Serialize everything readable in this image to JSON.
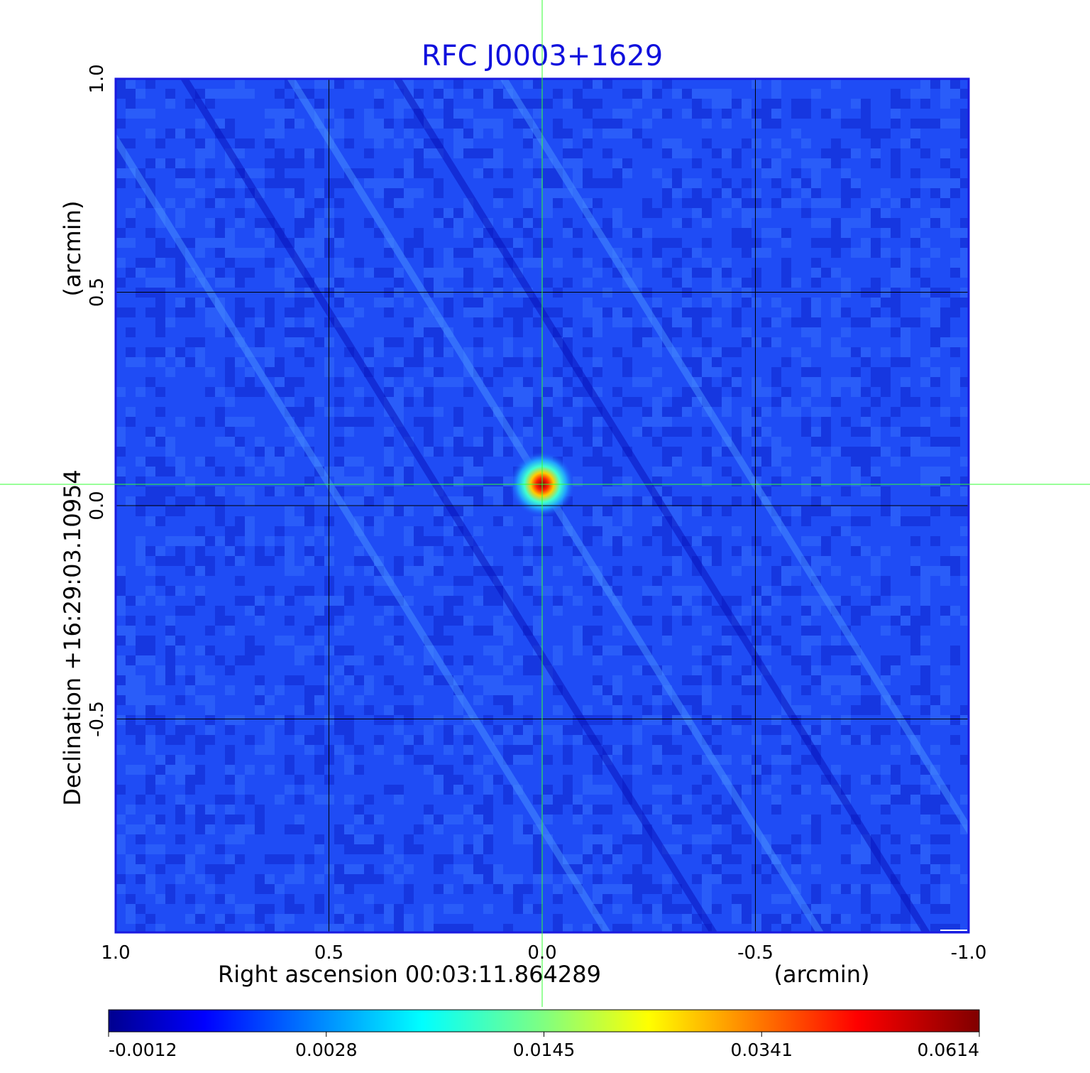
{
  "chart_data": {
    "type": "heatmap",
    "title": "RFC J0003+1629",
    "xlabel": "Right ascension  00:03:11.864289",
    "xunit": "(arcmin)",
    "ylabel": "Declination  +16:29:03.10954",
    "yunit": "(arcmin)",
    "x_range": [
      1.0,
      -1.0
    ],
    "y_range": [
      -1.0,
      1.0
    ],
    "x_ticks": [
      "1.0",
      "0.5",
      "0.0",
      "-0.5",
      "-1.0"
    ],
    "x_tick_values": [
      1.0,
      0.5,
      0.0,
      -0.5,
      -1.0
    ],
    "y_ticks": [
      "-0.5",
      "0.0",
      "0.5",
      "1.0"
    ],
    "y_tick_values": [
      -0.5,
      0.0,
      0.5,
      1.0
    ],
    "grid": true,
    "colormap": "jet",
    "colorbar": {
      "ticks": [
        "-0.0012",
        "0.0028",
        "0.0145",
        "0.0341",
        "0.0614"
      ],
      "tick_values": [
        -0.0012,
        0.0028,
        0.0145,
        0.0341,
        0.0614
      ]
    },
    "source": {
      "x": 0.0,
      "y": 0.05,
      "peak": 0.0614
    },
    "crosshair": {
      "x": 0.0,
      "y": 0.05
    },
    "colors": {
      "title": "#1010dd",
      "frame": "#1a1ae0",
      "crosshair": "#33ff33",
      "grid": "#000000"
    }
  }
}
